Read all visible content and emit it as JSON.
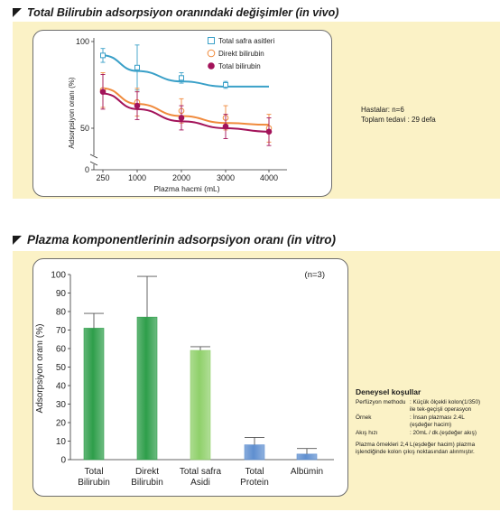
{
  "headings": {
    "top": "Total Bilirubin adsorpsiyon oranındaki değişimler (in vivo)",
    "bottom": "Plazma komponentlerinin adsorpsiyon oranı (in vitro)"
  },
  "side_info": {
    "patients": "Hastalar: n=6",
    "treatments": "Toplam tedavi : 29 defa"
  },
  "conditions": {
    "title": "Deneysel koşullar",
    "rows": [
      {
        "key": "Perfüzyon methodu",
        "value": ": Küçük ölçekli kolon(1/350)"
      },
      {
        "key": "",
        "value": "ile tek-geçişli operasyon"
      },
      {
        "key": "Örnek",
        "value": ": İnsan plazması 2.4L"
      },
      {
        "key": "",
        "value": "(eşdeğer hacim)"
      },
      {
        "key": "Akış hızı",
        "value": ": 20mL / dk.(eşdeğer akış)"
      }
    ],
    "note": "Plazma örnekleri 2,4 L(eşdeğer hacim) plazma işlendiğinde kolon çıkış noktasından alınmıştır."
  },
  "chart_data": [
    {
      "type": "line",
      "title": "",
      "xlabel": "Plazma hacmi (mL)",
      "ylabel": "Adsorpsiyon oranı (%)",
      "x_ticks": [
        "250",
        "1000",
        "2000",
        "3000",
        "4000"
      ],
      "y_ticks": [
        "100",
        "50",
        "0"
      ],
      "ylim": [
        0,
        100
      ],
      "y_axis_break": true,
      "legend_position": "top-right",
      "series": [
        {
          "name": "Total safra asitleri",
          "color": "#3aa0c8",
          "marker": "square",
          "x": [
            250,
            1000,
            2000,
            3000
          ],
          "y": [
            92,
            85,
            79,
            75
          ],
          "err": [
            4,
            13,
            3,
            2
          ],
          "fit": [
            [
              250,
              92
            ],
            [
              1000,
              83
            ],
            [
              2000,
              77
            ],
            [
              3000,
              74
            ],
            [
              4000,
              74
            ]
          ]
        },
        {
          "name": "Direkt bilirubin",
          "color": "#f08a3c",
          "marker": "open-circle",
          "x": [
            250,
            1000,
            2000,
            3000,
            4000
          ],
          "y": [
            72,
            65,
            60,
            56,
            50
          ],
          "err": [
            10,
            8,
            7,
            7,
            8
          ],
          "fit": [
            [
              250,
              73
            ],
            [
              1000,
              64
            ],
            [
              2000,
              57
            ],
            [
              3000,
              53
            ],
            [
              4000,
              52
            ]
          ]
        },
        {
          "name": "Total bilirubin",
          "color": "#a3135a",
          "marker": "filled-circle",
          "x": [
            250,
            1000,
            2000,
            3000,
            4000
          ],
          "y": [
            71,
            63,
            56,
            51,
            48
          ],
          "err": [
            10,
            8,
            7,
            7,
            8
          ],
          "fit": [
            [
              250,
              70
            ],
            [
              1000,
              61
            ],
            [
              2000,
              54
            ],
            [
              3000,
              50
            ],
            [
              4000,
              48
            ]
          ]
        }
      ]
    },
    {
      "type": "bar",
      "title": "",
      "ylabel": "Adsorpsiyon oranı (%)",
      "ylim": [
        0,
        100
      ],
      "y_ticks": [
        "0",
        "10",
        "20",
        "30",
        "40",
        "50",
        "60",
        "70",
        "80",
        "90",
        "100"
      ],
      "annotation": "(n=3)",
      "categories": [
        [
          "Total",
          "Bilirubin"
        ],
        [
          "Direkt",
          "Bilirubin"
        ],
        [
          "Total safra",
          "Asidi"
        ],
        [
          "Total",
          "Protein"
        ],
        [
          "Albümin"
        ]
      ],
      "values": [
        71,
        77,
        59,
        8,
        3
      ],
      "errors": [
        8,
        22,
        2,
        4,
        3
      ],
      "colors": [
        "#2e9e4a",
        "#2e9e4a",
        "#8fd06a",
        "#5f8fd0",
        "#5f8fd0"
      ]
    }
  ]
}
